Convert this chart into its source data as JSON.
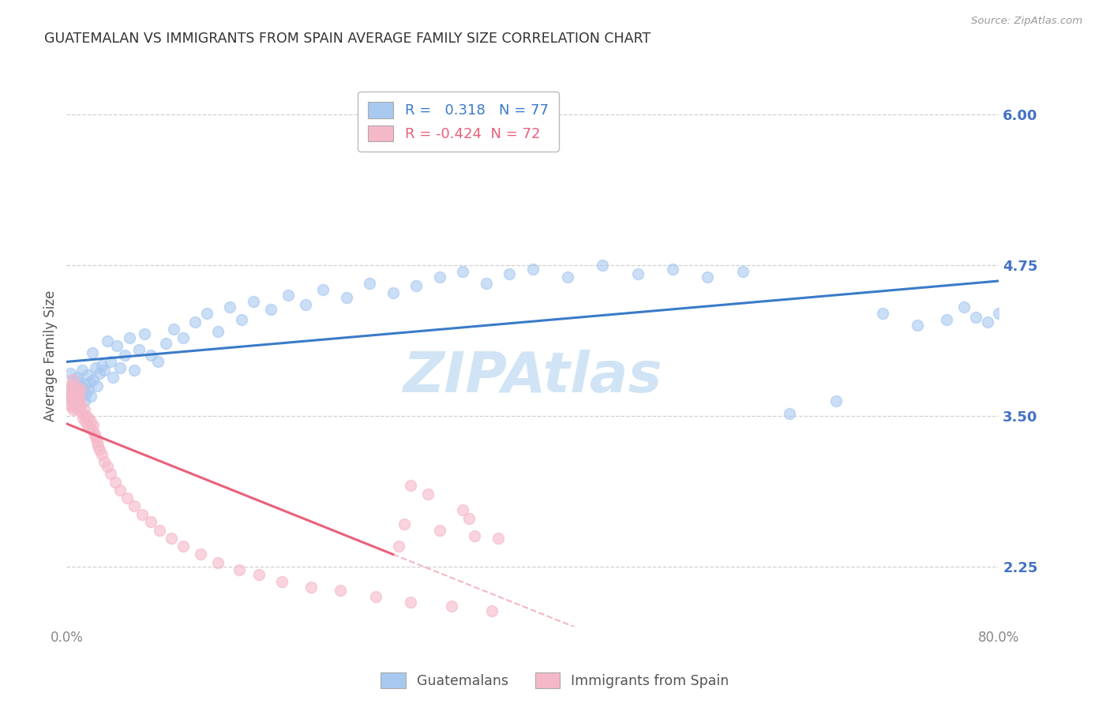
{
  "title": "GUATEMALAN VS IMMIGRANTS FROM SPAIN AVERAGE FAMILY SIZE CORRELATION CHART",
  "source": "Source: ZipAtlas.com",
  "ylabel": "Average Family Size",
  "yticks_right": [
    2.25,
    3.5,
    4.75,
    6.0
  ],
  "xlim": [
    0.0,
    0.8
  ],
  "ylim": [
    1.75,
    6.25
  ],
  "legend_labels": [
    "Guatemalans",
    "Immigrants from Spain"
  ],
  "blue_color": "#A8C8F0",
  "pink_color": "#F5B8C8",
  "blue_line_color": "#3A7BC8",
  "pink_line_color": "#E8607A",
  "R_blue": 0.318,
  "N_blue": 77,
  "R_pink": -0.424,
  "N_pink": 72,
  "blue_scatter_x": [
    0.002,
    0.003,
    0.004,
    0.005,
    0.006,
    0.006,
    0.007,
    0.008,
    0.009,
    0.01,
    0.011,
    0.012,
    0.013,
    0.014,
    0.015,
    0.016,
    0.017,
    0.018,
    0.019,
    0.02,
    0.021,
    0.022,
    0.023,
    0.025,
    0.026,
    0.028,
    0.03,
    0.032,
    0.035,
    0.038,
    0.04,
    0.043,
    0.046,
    0.05,
    0.054,
    0.058,
    0.062,
    0.067,
    0.072,
    0.078,
    0.085,
    0.092,
    0.1,
    0.11,
    0.12,
    0.13,
    0.14,
    0.15,
    0.16,
    0.175,
    0.19,
    0.205,
    0.22,
    0.24,
    0.26,
    0.28,
    0.3,
    0.32,
    0.34,
    0.36,
    0.38,
    0.4,
    0.43,
    0.46,
    0.49,
    0.52,
    0.55,
    0.58,
    0.62,
    0.66,
    0.7,
    0.73,
    0.755,
    0.77,
    0.78,
    0.79,
    0.8
  ],
  "blue_scatter_y": [
    3.7,
    3.85,
    3.65,
    3.75,
    3.6,
    3.8,
    3.72,
    3.68,
    3.82,
    3.78,
    3.74,
    3.66,
    3.88,
    3.7,
    3.62,
    3.76,
    3.68,
    3.84,
    3.72,
    3.78,
    3.66,
    4.02,
    3.8,
    3.9,
    3.75,
    3.85,
    3.92,
    3.88,
    4.12,
    3.95,
    3.82,
    4.08,
    3.9,
    4.0,
    4.15,
    3.88,
    4.05,
    4.18,
    4.0,
    3.95,
    4.1,
    4.22,
    4.15,
    4.28,
    4.35,
    4.2,
    4.4,
    4.3,
    4.45,
    4.38,
    4.5,
    4.42,
    4.55,
    4.48,
    4.6,
    4.52,
    4.58,
    4.65,
    4.7,
    4.6,
    4.68,
    4.72,
    4.65,
    4.75,
    4.68,
    4.72,
    4.65,
    4.7,
    3.52,
    3.62,
    4.35,
    4.25,
    4.3,
    4.4,
    4.32,
    4.28,
    4.35
  ],
  "pink_scatter_x": [
    0.001,
    0.002,
    0.002,
    0.003,
    0.003,
    0.004,
    0.004,
    0.005,
    0.005,
    0.006,
    0.006,
    0.007,
    0.007,
    0.008,
    0.008,
    0.009,
    0.009,
    0.01,
    0.01,
    0.011,
    0.011,
    0.012,
    0.012,
    0.013,
    0.014,
    0.015,
    0.016,
    0.017,
    0.018,
    0.019,
    0.02,
    0.021,
    0.022,
    0.023,
    0.024,
    0.025,
    0.026,
    0.027,
    0.028,
    0.03,
    0.032,
    0.035,
    0.038,
    0.042,
    0.046,
    0.052,
    0.058,
    0.065,
    0.072,
    0.08,
    0.09,
    0.1,
    0.115,
    0.13,
    0.148,
    0.165,
    0.185,
    0.21,
    0.235,
    0.265,
    0.295,
    0.33,
    0.365,
    0.31,
    0.345,
    0.295,
    0.32,
    0.285,
    0.35,
    0.37,
    0.29,
    0.34
  ],
  "pink_scatter_y": [
    3.68,
    3.72,
    3.6,
    3.75,
    3.65,
    3.7,
    3.58,
    3.62,
    3.8,
    3.55,
    3.68,
    3.72,
    3.6,
    3.65,
    3.75,
    3.58,
    3.62,
    3.55,
    3.7,
    3.6,
    3.65,
    3.58,
    3.72,
    3.52,
    3.48,
    3.55,
    3.45,
    3.5,
    3.42,
    3.48,
    3.4,
    3.45,
    3.38,
    3.42,
    3.35,
    3.32,
    3.28,
    3.25,
    3.22,
    3.18,
    3.12,
    3.08,
    3.02,
    2.95,
    2.88,
    2.82,
    2.75,
    2.68,
    2.62,
    2.55,
    2.48,
    2.42,
    2.35,
    2.28,
    2.22,
    2.18,
    2.12,
    2.08,
    2.05,
    2.0,
    1.95,
    1.92,
    1.88,
    2.85,
    2.65,
    2.92,
    2.55,
    2.42,
    2.5,
    2.48,
    2.6,
    2.72
  ],
  "background_color": "#FFFFFF",
  "grid_color": "#CCCCCC",
  "title_color": "#333333",
  "axis_label_color": "#555555",
  "right_axis_color": "#4472C4",
  "watermark_color": "#D0E4F5"
}
